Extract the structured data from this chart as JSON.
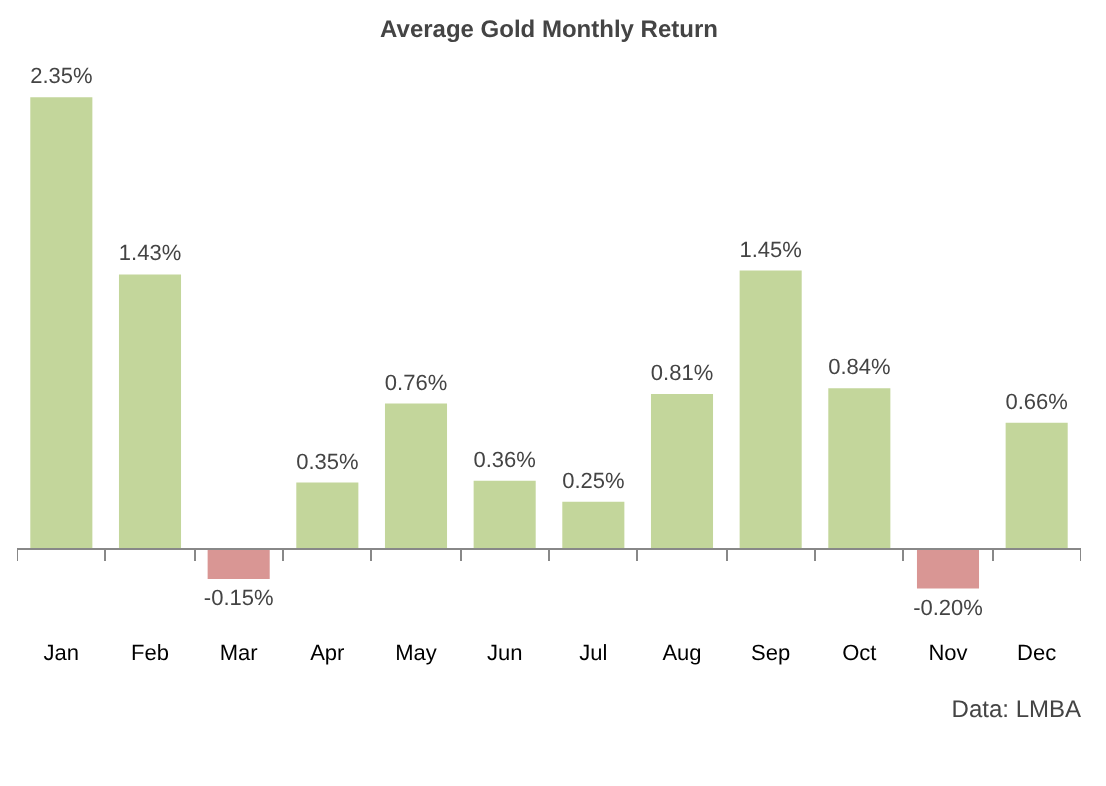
{
  "chart_data": {
    "type": "bar",
    "title": "Average Gold Monthly Return",
    "categories": [
      "Jan",
      "Feb",
      "Mar",
      "Apr",
      "May",
      "Jun",
      "Jul",
      "Aug",
      "Sep",
      "Oct",
      "Nov",
      "Dec"
    ],
    "values": [
      2.35,
      1.43,
      -0.15,
      0.35,
      0.76,
      0.36,
      0.25,
      0.81,
      1.45,
      0.84,
      -0.2,
      0.66
    ],
    "colors": [
      "#c3d69b",
      "#c3d69b",
      "#d99694",
      "#c3d69b",
      "#c3d69b",
      "#c3d69b",
      "#c3d69b",
      "#c3d69b",
      "#c3d69b",
      "#c3d69b",
      "#d99694",
      "#c3d69b"
    ],
    "value_labels": [
      "2.35%",
      "1.43%",
      "-0.15%",
      "0.35%",
      "0.76%",
      "0.36%",
      "0.25%",
      "0.81%",
      "1.45%",
      "0.84%",
      "-0.20%",
      "0.66%"
    ],
    "grid": false,
    "annotations": [
      "Data: LMBA"
    ]
  }
}
